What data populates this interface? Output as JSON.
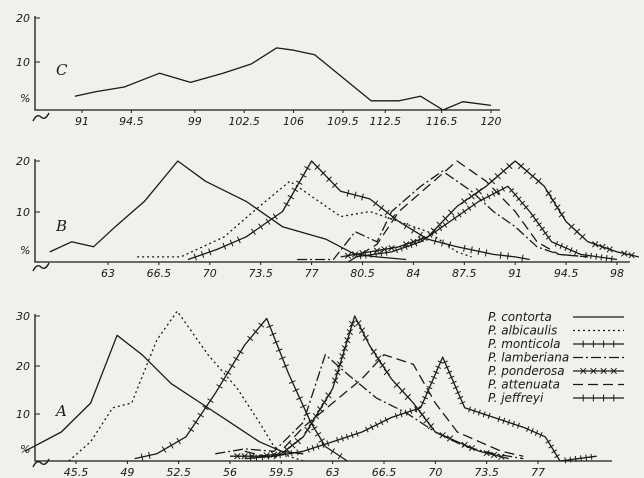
{
  "chart_data": [
    {
      "type": "line",
      "panel_label": "C",
      "y_unit": "%",
      "yticks": [
        10,
        20
      ],
      "ylim": [
        0,
        20
      ],
      "xticks": [
        "91",
        "94.5",
        "99",
        "102.5",
        "106",
        "109.5",
        "112.5",
        "116.5",
        "120"
      ],
      "series": [
        {
          "style": "solid",
          "points": [
            [
              90.5,
              3
            ],
            [
              92,
              4
            ],
            [
              94,
              5
            ],
            [
              96.5,
              8
            ],
            [
              98.7,
              6
            ],
            [
              101,
              8
            ],
            [
              103,
              10
            ],
            [
              104.8,
              13.5
            ],
            [
              106,
              13
            ],
            [
              107.5,
              12
            ],
            [
              109.5,
              7
            ],
            [
              111.5,
              2
            ],
            [
              113.5,
              2
            ],
            [
              115,
              3
            ],
            [
              116.6,
              0
            ],
            [
              118,
              1.8
            ],
            [
              120,
              1
            ]
          ]
        }
      ]
    },
    {
      "type": "line",
      "panel_label": "B",
      "y_unit": "%",
      "yticks": [
        10,
        20
      ],
      "ylim": [
        0,
        20
      ],
      "xticks": [
        "63",
        "66.5",
        "70",
        "73.5",
        "77",
        "80.5",
        "84",
        "87.5",
        "91",
        "94.5",
        "98"
      ],
      "series": [
        {
          "key": "contorta",
          "style": "solid",
          "points": [
            [
              59,
              2
            ],
            [
              60.5,
              4
            ],
            [
              62,
              3
            ],
            [
              63.5,
              7
            ],
            [
              65.5,
              12
            ],
            [
              67.8,
              20
            ],
            [
              69.7,
              16
            ],
            [
              72.5,
              12
            ],
            [
              75,
              7
            ],
            [
              78,
              4.5
            ],
            [
              80,
              1.5
            ],
            [
              81.5,
              1
            ],
            [
              83.5,
              0.5
            ]
          ]
        },
        {
          "key": "albicaulis",
          "style": "dotted",
          "points": [
            [
              65,
              1
            ],
            [
              68,
              1
            ],
            [
              71,
              5
            ],
            [
              73,
              10
            ],
            [
              75.5,
              16
            ],
            [
              77.5,
              12
            ],
            [
              79,
              9
            ],
            [
              81,
              10
            ],
            [
              83,
              8
            ],
            [
              85,
              6
            ],
            [
              87,
              2
            ],
            [
              88,
              1
            ]
          ]
        },
        {
          "key": "monticola",
          "style": "tick",
          "points": [
            [
              68.5,
              0.5
            ],
            [
              70.5,
              2.5
            ],
            [
              72.5,
              5
            ],
            [
              75,
              10
            ],
            [
              77,
              20
            ],
            [
              79,
              14
            ],
            [
              81,
              12.5
            ],
            [
              83,
              8
            ],
            [
              85,
              4.5
            ],
            [
              87,
              3
            ],
            [
              89.5,
              1.5
            ],
            [
              91,
              1
            ],
            [
              92,
              0.5
            ]
          ]
        },
        {
          "key": "lamberiana",
          "style": "dashdot",
          "points": [
            [
              76,
              0.5
            ],
            [
              78.5,
              0.5
            ],
            [
              80,
              6
            ],
            [
              81.5,
              4
            ],
            [
              82.5,
              10
            ],
            [
              84.5,
              15
            ],
            [
              86,
              18
            ],
            [
              88,
              14
            ],
            [
              89.5,
              10
            ],
            [
              91,
              7
            ],
            [
              92.5,
              3
            ],
            [
              94,
              1.5
            ],
            [
              96,
              1
            ]
          ]
        },
        {
          "key": "ponderosa",
          "style": "cross",
          "points": [
            [
              79,
              1
            ],
            [
              81,
              2
            ],
            [
              83,
              3
            ],
            [
              85,
              5
            ],
            [
              87,
              11
            ],
            [
              89,
              15
            ],
            [
              91,
              20
            ],
            [
              93,
              15
            ],
            [
              94.5,
              8
            ],
            [
              96,
              4
            ],
            [
              98,
              2
            ],
            [
              99.5,
              1
            ]
          ]
        },
        {
          "key": "attenuata",
          "style": "dashed",
          "points": [
            [
              79.5,
              0
            ],
            [
              81.5,
              3.5
            ],
            [
              83,
              10
            ],
            [
              85,
              15
            ],
            [
              87,
              20
            ],
            [
              89,
              16
            ],
            [
              91,
              10
            ],
            [
              92.5,
              4
            ],
            [
              94,
              1.5
            ],
            [
              96,
              1
            ]
          ]
        },
        {
          "key": "jeffreyi",
          "style": "plus",
          "points": [
            [
              80,
              1
            ],
            [
              82.5,
              2
            ],
            [
              84.5,
              4
            ],
            [
              86.5,
              8
            ],
            [
              88.5,
              12
            ],
            [
              90.5,
              15
            ],
            [
              92,
              10
            ],
            [
              93.5,
              4
            ],
            [
              95.5,
              1.5
            ],
            [
              98,
              0.5
            ]
          ]
        }
      ]
    },
    {
      "type": "line",
      "panel_label": "A",
      "y_unit": "%",
      "yticks": [
        10,
        20,
        30
      ],
      "ylim": [
        0,
        30
      ],
      "xticks": [
        "45.5",
        "49",
        "52.5",
        "56",
        "59.5",
        "63",
        "66.5",
        "70",
        "73.5",
        "77"
      ],
      "series": [
        {
          "key": "contorta",
          "style": "solid",
          "points": [
            [
              42,
              2
            ],
            [
              44.5,
              6
            ],
            [
              46.5,
              12
            ],
            [
              48.3,
              26
            ],
            [
              50,
              22
            ],
            [
              52,
              16
            ],
            [
              54,
              12
            ],
            [
              56,
              8
            ],
            [
              58,
              4
            ],
            [
              59.5,
              2
            ],
            [
              61,
              1.5
            ]
          ]
        },
        {
          "key": "albicaulis",
          "style": "dotted",
          "points": [
            [
              45,
              0
            ],
            [
              46.5,
              4
            ],
            [
              48,
              11
            ],
            [
              49.3,
              12
            ],
            [
              51,
              25
            ],
            [
              52.4,
              31
            ],
            [
              54.5,
              22
            ],
            [
              56.5,
              15
            ],
            [
              58,
              8
            ],
            [
              59,
              3
            ],
            [
              60,
              1
            ],
            [
              61,
              0
            ]
          ]
        },
        {
          "key": "monticola",
          "style": "tick",
          "points": [
            [
              49.5,
              0.5
            ],
            [
              51,
              1.5
            ],
            [
              53,
              5
            ],
            [
              55,
              14
            ],
            [
              57,
              24
            ],
            [
              58.5,
              29.5
            ],
            [
              60,
              18
            ],
            [
              61.5,
              8
            ],
            [
              62.5,
              3
            ],
            [
              64,
              0
            ]
          ]
        },
        {
          "key": "lamberiana",
          "style": "dashdot",
          "points": [
            [
              55,
              1.5
            ],
            [
              57,
              2.5
            ],
            [
              59,
              2
            ],
            [
              61,
              8
            ],
            [
              62.5,
              22
            ],
            [
              64,
              18
            ],
            [
              66,
              13
            ],
            [
              68,
              10
            ],
            [
              70,
              6
            ],
            [
              72,
              3
            ],
            [
              74,
              1.5
            ],
            [
              76,
              0.5
            ]
          ]
        },
        {
          "key": "ponderosa",
          "style": "cross",
          "points": [
            [
              56,
              1
            ],
            [
              58,
              1
            ],
            [
              59.5,
              1.5
            ],
            [
              61,
              5
            ],
            [
              63,
              15
            ],
            [
              64.5,
              30
            ],
            [
              65.5,
              24
            ],
            [
              67,
              17
            ],
            [
              68.5,
              12
            ],
            [
              70,
              6
            ],
            [
              71.5,
              4
            ],
            [
              73,
              2
            ],
            [
              75,
              0.5
            ]
          ]
        },
        {
          "key": "attenuata",
          "style": "dashed",
          "points": [
            [
              57,
              2
            ],
            [
              59,
              0.5
            ],
            [
              61,
              7
            ],
            [
              63,
              12
            ],
            [
              65,
              17
            ],
            [
              66.5,
              22
            ],
            [
              68.5,
              20
            ],
            [
              70,
              12
            ],
            [
              71.5,
              6
            ],
            [
              73,
              4
            ],
            [
              74.5,
              2
            ],
            [
              76,
              1
            ]
          ]
        },
        {
          "key": "jeffreyi",
          "style": "plus",
          "points": [
            [
              57,
              0.5
            ],
            [
              59,
              1
            ],
            [
              61,
              2
            ],
            [
              63,
              4
            ],
            [
              65,
              6
            ],
            [
              67,
              9
            ],
            [
              69,
              11
            ],
            [
              70.5,
              21.5
            ],
            [
              72,
              11
            ],
            [
              74,
              9
            ],
            [
              76,
              7
            ],
            [
              77.5,
              5
            ],
            [
              78.5,
              0
            ],
            [
              81,
              1
            ]
          ]
        }
      ]
    }
  ],
  "legend": [
    {
      "key": "contorta",
      "label": "P. contorta",
      "style": "solid"
    },
    {
      "key": "albicaulis",
      "label": "P. albicaulis",
      "style": "dotted"
    },
    {
      "key": "monticola",
      "label": "P. monticola",
      "style": "tick"
    },
    {
      "key": "lamberiana",
      "label": "P. lamberiana",
      "style": "dashdot"
    },
    {
      "key": "ponderosa",
      "label": "P. ponderosa",
      "style": "cross"
    },
    {
      "key": "attenuata",
      "label": "P. attenuata",
      "style": "dashed"
    },
    {
      "key": "jeffreyi",
      "label": "P. jeffreyi",
      "style": "plus"
    }
  ],
  "colors": {
    "ink": "#1a1a1a",
    "paper": "#f1f0ec"
  }
}
